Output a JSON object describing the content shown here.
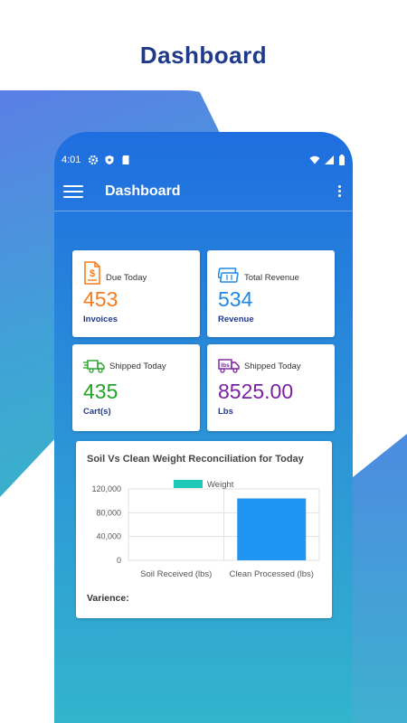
{
  "headline": "Dashboard",
  "status_bar": {
    "time": "4:01"
  },
  "app_bar": {
    "title": "Dashboard"
  },
  "cards": [
    {
      "label": "Due Today",
      "value": "453",
      "unit": "Invoices",
      "color": "#f57c1f",
      "icon": "invoice-icon"
    },
    {
      "label": "Total Revenue",
      "value": "534",
      "unit": "Revenue",
      "color": "#1e88e5",
      "icon": "cash-icon"
    },
    {
      "label": "Shipped Today",
      "value": "435",
      "unit": "Cart(s)",
      "color": "#22a328",
      "icon": "delivery-truck-icon"
    },
    {
      "label": "Shipped Today",
      "value": "8525.00",
      "unit": "Lbs",
      "color": "#7b1fa2",
      "icon": "weight-truck-icon"
    }
  ],
  "chart_data": {
    "type": "bar",
    "title": "Soil Vs Clean Weight Reconciliation for Today",
    "categories": [
      "Soil Received (lbs)",
      "Clean Processed (lbs)"
    ],
    "series": [
      {
        "name": "Weight",
        "values": [
          0,
          104000
        ],
        "color": "#1e95f2"
      }
    ],
    "legend_color": "#1ec9b8",
    "ylim": [
      0,
      120000
    ],
    "yticks": [
      "0",
      "40,000",
      "80,000",
      "120,000"
    ],
    "ytick_values": [
      0,
      40000,
      80000,
      120000
    ],
    "grid": true,
    "legend": "top-center"
  },
  "variance_label": "Varience:"
}
